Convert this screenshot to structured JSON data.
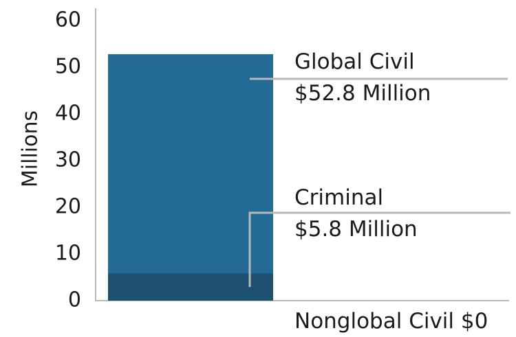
{
  "chart_data": {
    "type": "bar",
    "stacked": true,
    "ylabel": "Millions",
    "ylim": [
      0,
      60
    ],
    "yticks": [
      "0",
      "10",
      "20",
      "30",
      "40",
      "50",
      "60"
    ],
    "grid": false,
    "colors": {
      "criminal": "#1d4f70",
      "global_civil": "#236a94",
      "axis": "#b9b9b9",
      "leader": "#b9b9b9"
    },
    "series": [
      {
        "name": "Criminal",
        "value": 5.8
      },
      {
        "name": "Global Civil",
        "value": 52.8
      },
      {
        "name": "Nonglobal Civil",
        "value": 0
      }
    ],
    "annotations": {
      "global_civil": {
        "name": "Global Civil",
        "amount": "$52.8 Million"
      },
      "criminal": {
        "name": "Criminal",
        "amount": "$5.8 Million"
      },
      "nonglobal_civil": {
        "text": "Nonglobal Civil $0"
      }
    }
  }
}
